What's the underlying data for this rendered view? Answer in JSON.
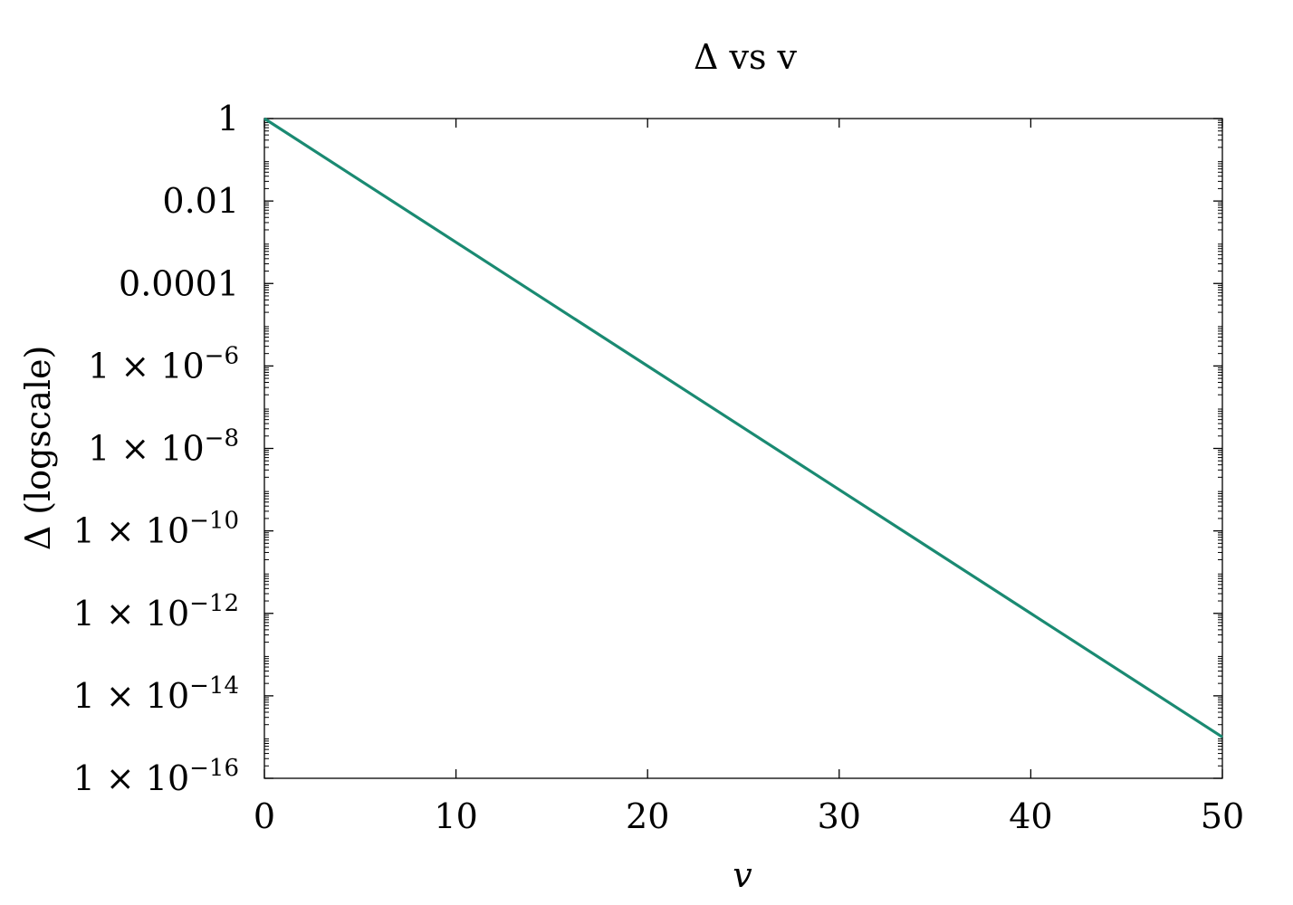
{
  "chart_data": {
    "type": "line",
    "title": "Δ vs v",
    "xlabel": "v",
    "ylabel": "Δ (logscale)",
    "xlim": [
      0,
      50
    ],
    "ylim": [
      1e-16,
      1
    ],
    "y_scale": "log",
    "grid": false,
    "legend": "none",
    "x_ticks": [
      {
        "value": 0,
        "label": "0"
      },
      {
        "value": 10,
        "label": "10"
      },
      {
        "value": 20,
        "label": "20"
      },
      {
        "value": 30,
        "label": "30"
      },
      {
        "value": 40,
        "label": "40"
      },
      {
        "value": 50,
        "label": "50"
      }
    ],
    "y_ticks": [
      {
        "value": 1,
        "label": "1",
        "exp": ""
      },
      {
        "value": 0.01,
        "label": "0.01",
        "exp": ""
      },
      {
        "value": 0.0001,
        "label": "0.0001",
        "exp": ""
      },
      {
        "value": 1e-06,
        "label": "1 × 10",
        "exp": "−6"
      },
      {
        "value": 1e-08,
        "label": "1 × 10",
        "exp": "−8"
      },
      {
        "value": 1e-10,
        "label": "1 × 10",
        "exp": "−10"
      },
      {
        "value": 1e-12,
        "label": "1 × 10",
        "exp": "−12"
      },
      {
        "value": 1e-14,
        "label": "1 × 10",
        "exp": "−14"
      },
      {
        "value": 1e-16,
        "label": "1 × 10",
        "exp": "−16"
      }
    ],
    "series": [
      {
        "color": "#1a8a72",
        "x": [
          0,
          10,
          20,
          30,
          40,
          50
        ],
        "y": [
          1,
          0.001,
          1e-06,
          1e-09,
          1e-12,
          1e-15
        ]
      }
    ]
  }
}
